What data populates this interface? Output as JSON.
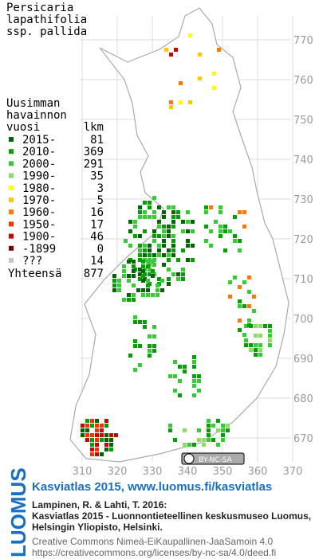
{
  "title": [
    "Persicaria",
    "lapathifolia",
    "ssp. pallida"
  ],
  "legend": {
    "header": [
      "Uusimman",
      "havainnon"
    ],
    "col_period": "vuosi",
    "col_count": "lkm",
    "rows": [
      {
        "label": "2015-",
        "count": 81,
        "color": "#006400"
      },
      {
        "label": "2010-",
        "count": 369,
        "color": "#00a000"
      },
      {
        "label": "2000-",
        "count": 291,
        "color": "#33cc33"
      },
      {
        "label": "1990-",
        "count": 35,
        "color": "#88e060"
      },
      {
        "label": "1980-",
        "count": 3,
        "color": "#ffff00"
      },
      {
        "label": "1970-",
        "count": 5,
        "color": "#ffc800"
      },
      {
        "label": "1960-",
        "count": 16,
        "color": "#ff7800"
      },
      {
        "label": "1950-",
        "count": 17,
        "color": "#ff3000"
      },
      {
        "label": "1900-",
        "count": 46,
        "color": "#d00000"
      },
      {
        "label": "-1899",
        "count": 0,
        "color": "#800000"
      },
      {
        "label": "???",
        "count": 14,
        "color": "#c8c8c8"
      }
    ],
    "total_label": "Yhteensä",
    "total": 877
  },
  "y_ticks": [
    770,
    760,
    750,
    740,
    730,
    720,
    710,
    700,
    690,
    680,
    670
  ],
  "x_ticks": [
    310,
    320,
    330,
    340,
    350,
    360,
    370
  ],
  "license_badge": "BY-NC-SA",
  "footer": {
    "logo": "LUOMUS",
    "heading": "Kasviatlas 2015, www.luomus.fi/kasviatlas",
    "citation": [
      "Lampinen, R. & Lahti, T. 2016:",
      "Kasviatlas 2015 - Luonnontieteellinen keskusmuseo Luomus,",
      "Helsingin Yliopisto, Helsinki."
    ],
    "license": [
      "Creative Commons Nimeä-EiKaupallinen-JaaSamoin 4.0",
      "https://creativecommons.org/licenses/by-nc-sa/4.0/deed.fi"
    ]
  }
}
